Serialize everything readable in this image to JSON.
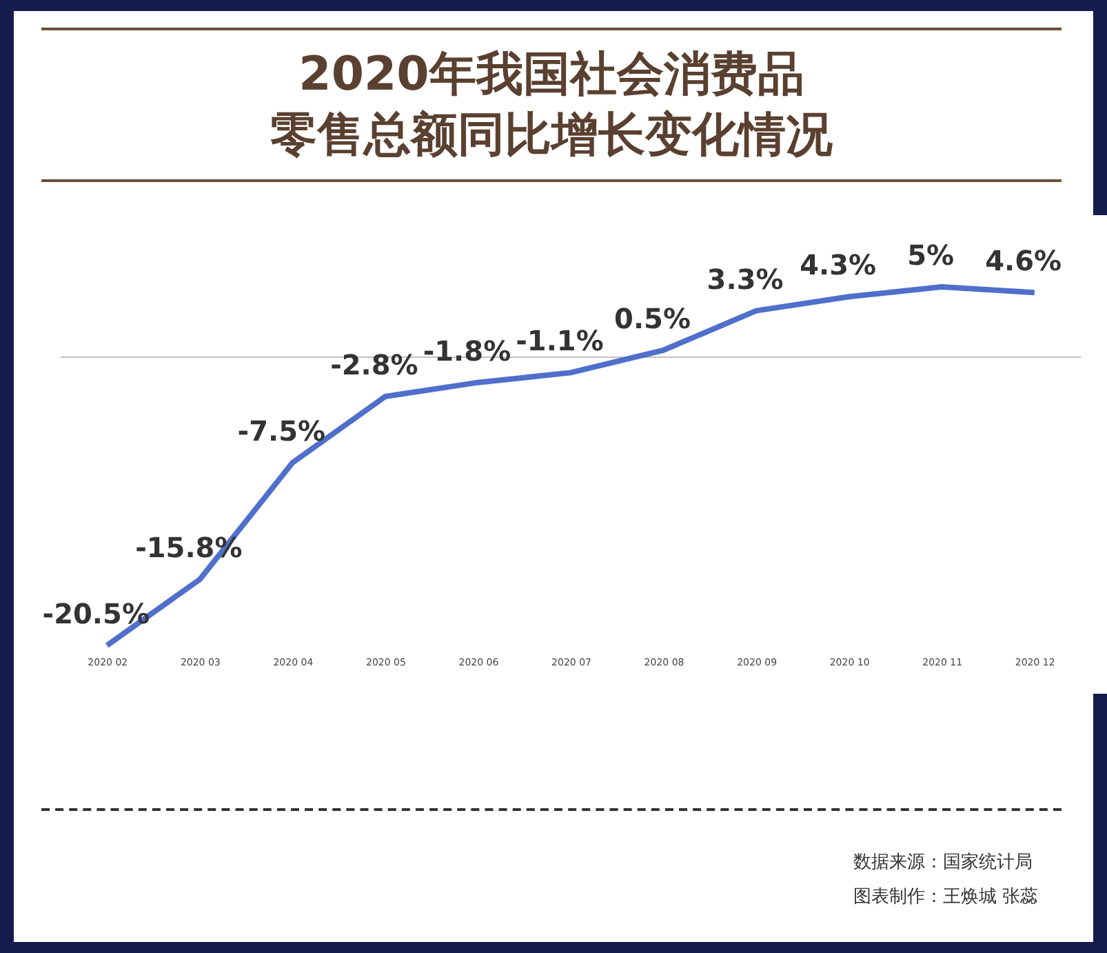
{
  "chart_data": {
    "type": "line",
    "title": "2020年我国社会消费品零售总额同比增长变化情况",
    "categories": [
      "2020 02",
      "2020 03",
      "2020 04",
      "2020 05",
      "2020 06",
      "2020 07",
      "2020 08",
      "2020 09",
      "2020 10",
      "2020 11",
      "2020 12"
    ],
    "series": [
      {
        "color": "#4f6fcb",
        "values": [
          -20.5,
          -15.8,
          -7.5,
          -2.8,
          -1.8,
          -1.1,
          0.5,
          3.3,
          4.3,
          5,
          4.6
        ],
        "value_labels": [
          "-20.5%",
          "-15.8%",
          "-7.5%",
          "-2.8%",
          "-1.8%",
          "-1.1%",
          "0.5%",
          "3.3%",
          "4.3%",
          "5%",
          "4.6%"
        ]
      }
    ],
    "ref_lines": [
      {
        "axis": "y",
        "value": 0,
        "color": "#bfbfbf"
      }
    ],
    "marker": "none",
    "grid": false,
    "legend": false,
    "annotations": [
      "数据来源：国家统计局",
      "图表制作：王焕城 张蕊"
    ]
  }
}
